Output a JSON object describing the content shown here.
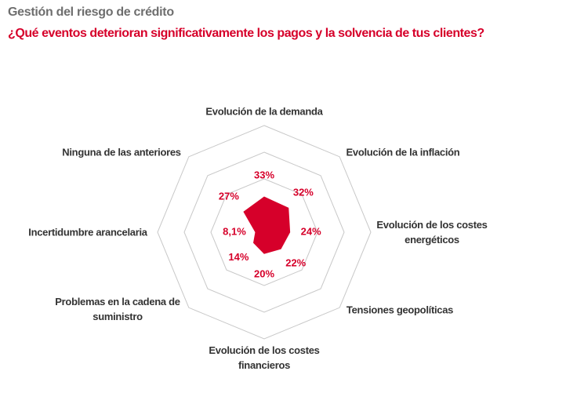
{
  "chart_data": {
    "type": "radar",
    "title": "Gestión del riesgo de crédito",
    "subtitle": "¿Qué eventos deterioran significativamente los pagos y la solvencia de tus clientes?",
    "categories": [
      "Evolución de la demanda",
      "Evolución de la inflación",
      "Evolución de los costes energéticos",
      "Tensiones geopolíticas",
      "Evolución de los costes financieros",
      "Problemas en la cadena de suministro",
      "Incertidumbre arancelaria",
      "Ninguna de las anteriores"
    ],
    "values": [
      33,
      32,
      24,
      22,
      20,
      14,
      8.1,
      27
    ],
    "value_labels": [
      "33%",
      "32%",
      "24%",
      "22%",
      "20%",
      "14%",
      "8,1%",
      "27%"
    ],
    "color": "#d6002a",
    "rlim": [
      0,
      100
    ],
    "rticks": [
      50,
      75,
      100
    ],
    "grid": true
  }
}
